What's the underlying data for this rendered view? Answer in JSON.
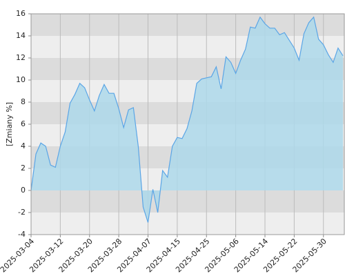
{
  "chart_data": {
    "type": "area",
    "y_label": "[Zmiany %]",
    "categories": [
      "2025-03-04",
      null,
      null,
      null,
      null,
      null,
      "2025-03-12",
      null,
      null,
      null,
      null,
      null,
      "2025-03-20",
      null,
      null,
      null,
      null,
      null,
      "2025-03-28",
      null,
      null,
      null,
      null,
      null,
      "2025-04-07",
      null,
      null,
      null,
      null,
      null,
      "2025-04-15",
      null,
      null,
      null,
      null,
      null,
      "2025-04-25",
      null,
      null,
      null,
      null,
      null,
      "2025-05-06",
      null,
      null,
      null,
      null,
      null,
      "2025-05-14",
      null,
      null,
      null,
      null,
      null,
      "2025-05-22",
      null,
      null,
      null,
      null,
      null,
      "2025-05-30",
      null,
      null,
      null,
      null
    ],
    "values": [
      0,
      3.3,
      4.3,
      4.0,
      2.3,
      2.1,
      4.0,
      5.3,
      7.9,
      8.7,
      9.7,
      9.3,
      8.2,
      7.2,
      8.6,
      9.6,
      8.8,
      8.8,
      7.4,
      5.7,
      7.3,
      7.5,
      4.0,
      -1.5,
      -2.9,
      0.1,
      -2.0,
      1.8,
      1.2,
      4.0,
      4.8,
      4.7,
      5.6,
      7.2,
      9.7,
      10.1,
      10.2,
      10.3,
      11.2,
      9.2,
      12.1,
      11.6,
      10.6,
      11.8,
      12.8,
      14.8,
      14.7,
      15.7,
      15.1,
      14.7,
      14.7,
      14.1,
      14.3,
      13.6,
      12.9,
      11.8,
      14.2,
      15.2,
      15.7,
      13.7,
      13.2,
      12.3,
      11.6,
      12.9,
      12.2
    ],
    "color": "#5aa5e6",
    "fill_color": "#add8ea",
    "ylim": [
      -4,
      16
    ],
    "yticks": [
      -4,
      -2,
      0,
      2,
      4,
      6,
      8,
      10,
      12,
      14,
      16
    ],
    "grid": true
  }
}
